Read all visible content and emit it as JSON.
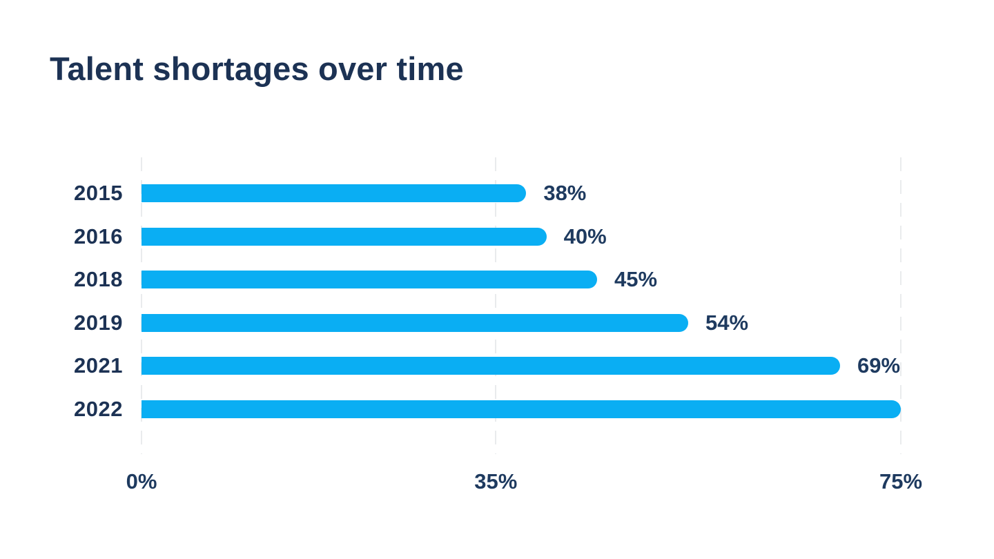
{
  "header": {
    "title": "Talent shortages over time"
  },
  "colors": {
    "bar": "#0aaef3",
    "heading_text": "#1c3254",
    "label_text": "#1e3a5f",
    "gridline": "#e9ebed",
    "background": "#ffffff"
  },
  "chart_data": {
    "type": "bar",
    "orientation": "horizontal",
    "title": "Talent shortages over time",
    "xlabel": "",
    "ylabel": "",
    "categories": [
      "2015",
      "2016",
      "2018",
      "2019",
      "2021",
      "2022"
    ],
    "values": [
      38,
      40,
      45,
      54,
      69,
      75
    ],
    "value_labels": [
      "38%",
      "40%",
      "45%",
      "54%",
      "69%",
      ""
    ],
    "xlim": [
      0,
      75
    ],
    "x_ticks": [
      {
        "value": 0,
        "label": "0%"
      },
      {
        "value": 35,
        "label": "35%"
      },
      {
        "value": 75,
        "label": "75%"
      }
    ],
    "grid": "vertical-dashed",
    "legend": "none",
    "bar_color": "#0aaef3",
    "text_color": "#1e3a5f"
  }
}
